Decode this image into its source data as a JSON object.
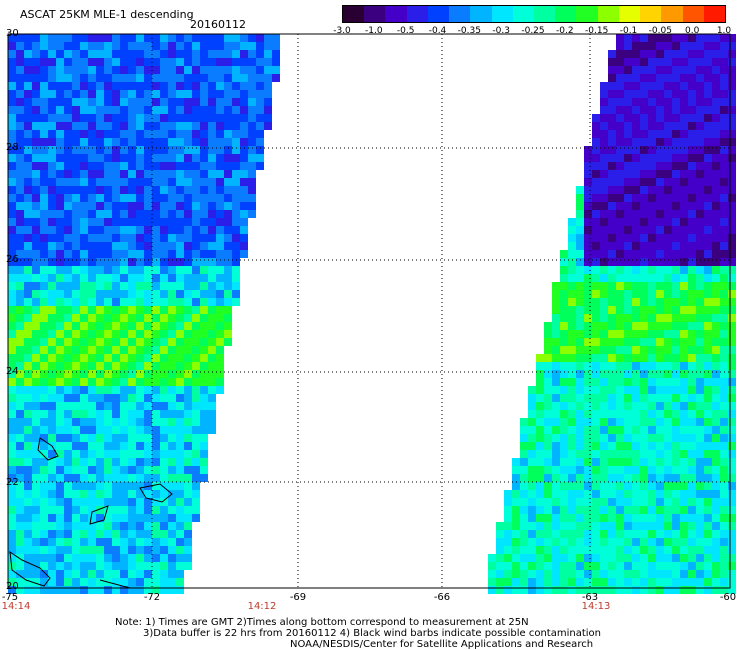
{
  "header": {
    "title": "ASCAT 25KM MLE-1 descending",
    "date": "20160112"
  },
  "colorbar": {
    "labels": [
      "-3.0",
      "-1.0",
      "-0.5",
      "-0.4",
      "-0.35",
      "-0.3",
      "-0.25",
      "-0.2",
      "-0.15",
      "-0.1",
      "-0.05",
      "0.0",
      "1.0"
    ],
    "colors": [
      "#2a0033",
      "#3a0080",
      "#4400c8",
      "#2a1ee8",
      "#0040ff",
      "#0a7cff",
      "#00b4ff",
      "#00e6ff",
      "#00ffd9",
      "#00ffa0",
      "#00ff5a",
      "#22ff22",
      "#8cff00",
      "#e6ff00",
      "#ffd400",
      "#ff9900",
      "#ff5500",
      "#ff1a00"
    ]
  },
  "axes": {
    "lat_labels": [
      "30",
      "28",
      "26",
      "24",
      "22",
      "20"
    ],
    "lon_labels": [
      "-75",
      "-72",
      "-69",
      "-66",
      "-63",
      "-60"
    ]
  },
  "times": [
    "14:14",
    "14:12",
    "14:13"
  ],
  "notes": {
    "line1": "Note: 1) Times are GMT 2)Times along bottom correspond to measurement at 25N",
    "line2": "3)Data buffer is 22 hrs from 20160112 4) Black wind barbs indicate possible contamination",
    "line3": "NOAA/NESDIS/Center for Satellite Applications and Research"
  }
}
